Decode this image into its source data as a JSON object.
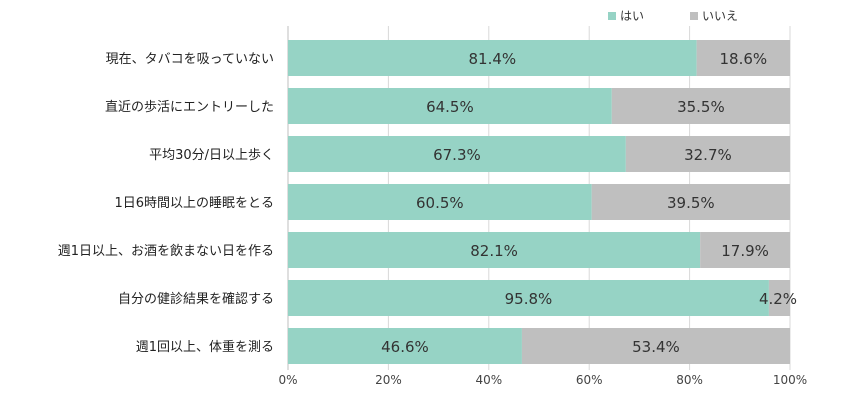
{
  "chart_data": {
    "type": "bar",
    "orientation": "horizontal",
    "stacked": true,
    "percent": true,
    "title": "",
    "xlabel": "",
    "ylabel": "",
    "xlim": [
      0,
      100
    ],
    "x_ticks": [
      "0%",
      "20%",
      "40%",
      "60%",
      "80%",
      "100%"
    ],
    "grid": true,
    "legend_position": "top-right",
    "categories": [
      "現在、タバコを吸っていない",
      "直近の歩活にエントリーした",
      "平均30分/日以上歩く",
      "1日6時間以上の睡眠をとる",
      "週1日以上、お酒を飲まない日を作る",
      "自分の健診結果を確認する",
      "週1回以上、体重を測る"
    ],
    "series": [
      {
        "name": "はい",
        "color": "#96d3c5",
        "values": [
          81.4,
          64.5,
          67.3,
          60.5,
          82.1,
          95.8,
          46.6
        ],
        "labels": [
          "81.4%",
          "64.5%",
          "67.3%",
          "60.5%",
          "82.1%",
          "95.8%",
          "46.6%"
        ]
      },
      {
        "name": "いいえ",
        "color": "#bfbfbf",
        "values": [
          18.6,
          35.5,
          32.7,
          39.5,
          17.9,
          4.2,
          53.4
        ],
        "labels": [
          "18.6%",
          "35.5%",
          "32.7%",
          "39.5%",
          "17.9%",
          "4.2%",
          "53.4%"
        ]
      }
    ]
  }
}
